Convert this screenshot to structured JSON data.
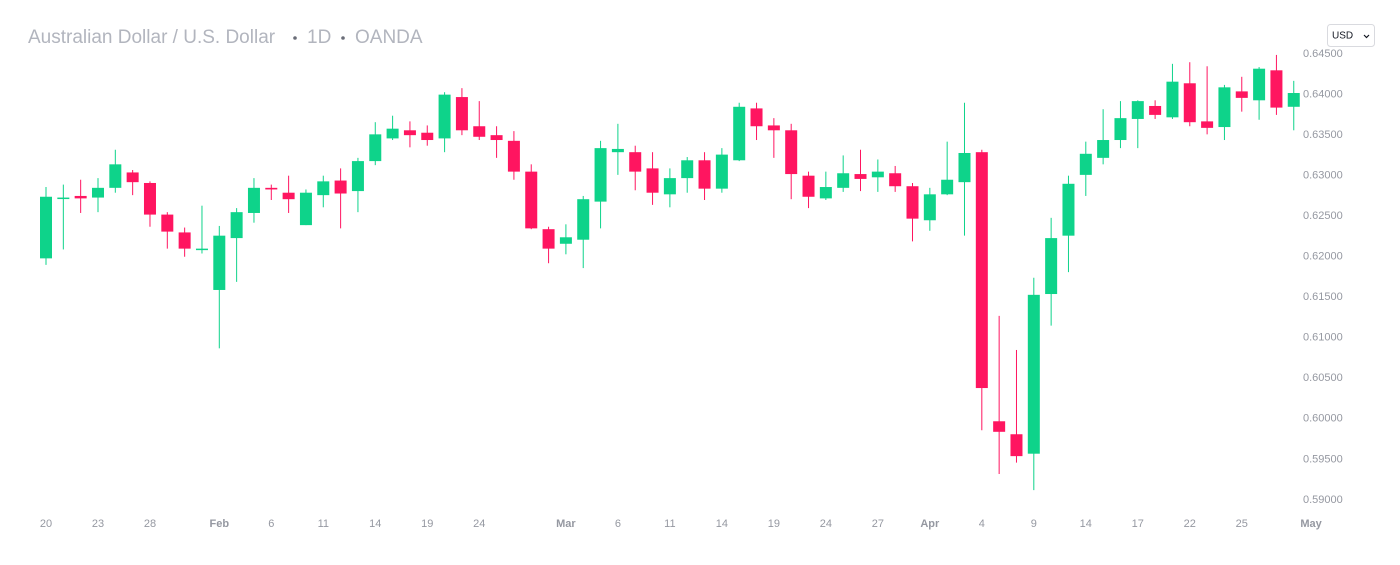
{
  "header": {
    "title": "Australian Dollar / U.S. Dollar",
    "interval": "1D",
    "source": "OANDA",
    "currency": "USD"
  },
  "chart_data": {
    "type": "candlestick",
    "up_color": "#0ed38a",
    "down_color": "#ff1560",
    "ylim": [
      0.589,
      0.646
    ],
    "yticks": [
      {
        "value": 0.59,
        "label": "0.59000"
      },
      {
        "value": 0.595,
        "label": "0.59500"
      },
      {
        "value": 0.6,
        "label": "0.60000"
      },
      {
        "value": 0.605,
        "label": "0.60500"
      },
      {
        "value": 0.61,
        "label": "0.61000"
      },
      {
        "value": 0.615,
        "label": "0.61500"
      },
      {
        "value": 0.62,
        "label": "0.62000"
      },
      {
        "value": 0.625,
        "label": "0.62500"
      },
      {
        "value": 0.63,
        "label": "0.63000"
      },
      {
        "value": 0.635,
        "label": "0.63500"
      },
      {
        "value": 0.64,
        "label": "0.64000"
      },
      {
        "value": 0.645,
        "label": "0.64500"
      }
    ],
    "xticks": [
      {
        "value": 0,
        "label": "20"
      },
      {
        "value": 3,
        "label": "23"
      },
      {
        "value": 6,
        "label": "28"
      },
      {
        "value": 10,
        "label": "Feb"
      },
      {
        "value": 13,
        "label": "6"
      },
      {
        "value": 16,
        "label": "11"
      },
      {
        "value": 19,
        "label": "14"
      },
      {
        "value": 22,
        "label": "19"
      },
      {
        "value": 25,
        "label": "24"
      },
      {
        "value": 30,
        "label": "Mar"
      },
      {
        "value": 33,
        "label": "6"
      },
      {
        "value": 36,
        "label": "11"
      },
      {
        "value": 39,
        "label": "14"
      },
      {
        "value": 42,
        "label": "19"
      },
      {
        "value": 45,
        "label": "24"
      },
      {
        "value": 48,
        "label": "27"
      },
      {
        "value": 51,
        "label": "Apr"
      },
      {
        "value": 54,
        "label": "4"
      },
      {
        "value": 57,
        "label": "9"
      },
      {
        "value": 60,
        "label": "14"
      },
      {
        "value": 63,
        "label": "17"
      },
      {
        "value": 66,
        "label": "22"
      },
      {
        "value": 69,
        "label": "25"
      },
      {
        "value": 73,
        "label": "May"
      }
    ],
    "open": [
      0.6198,
      0.6272,
      0.6275,
      0.6273,
      0.6285,
      0.6304,
      0.6291,
      0.6252,
      0.623,
      0.6209,
      0.6159,
      0.6223,
      0.6254,
      0.6285,
      0.6279,
      0.6239,
      0.6276,
      0.6294,
      0.6281,
      0.6318,
      0.6346,
      0.6356,
      0.6353,
      0.6346,
      0.6397,
      0.6361,
      0.635,
      0.6343,
      0.6305,
      0.6234,
      0.6216,
      0.6221,
      0.6268,
      0.6329,
      0.6329,
      0.6309,
      0.6277,
      0.6297,
      0.6319,
      0.6284,
      0.6319,
      0.6383,
      0.6362,
      0.6356,
      0.63,
      0.6272,
      0.6285,
      0.6302,
      0.6298,
      0.6303,
      0.6287,
      0.6245,
      0.6277,
      0.6292,
      0.6329,
      0.5997,
      0.5981,
      0.5957,
      0.6154,
      0.6226,
      0.6301,
      0.6322,
      0.6344,
      0.637,
      0.6386,
      0.6372,
      0.6414,
      0.6367,
      0.636,
      0.6404,
      0.6393,
      0.643,
      0.6385
    ],
    "high": [
      0.6286,
      0.6289,
      0.6295,
      0.6297,
      0.6332,
      0.6307,
      0.6293,
      0.6255,
      0.6236,
      0.6263,
      0.6238,
      0.626,
      0.6297,
      0.6289,
      0.63,
      0.6283,
      0.63,
      0.6309,
      0.6322,
      0.6366,
      0.6374,
      0.6367,
      0.6362,
      0.6403,
      0.6408,
      0.6392,
      0.6361,
      0.6355,
      0.6314,
      0.6237,
      0.624,
      0.6275,
      0.6343,
      0.6364,
      0.6337,
      0.6329,
      0.6309,
      0.6323,
      0.6329,
      0.6334,
      0.639,
      0.639,
      0.6371,
      0.6364,
      0.6305,
      0.6305,
      0.6325,
      0.6332,
      0.632,
      0.6312,
      0.6291,
      0.6285,
      0.6342,
      0.639,
      0.6332,
      0.6127,
      0.6085,
      0.6174,
      0.6248,
      0.63,
      0.6342,
      0.6382,
      0.6392,
      0.6393,
      0.6393,
      0.6438,
      0.644,
      0.6435,
      0.6412,
      0.6422,
      0.6434,
      0.6449,
      0.6417
    ],
    "low": [
      0.619,
      0.6209,
      0.6254,
      0.6255,
      0.6279,
      0.6276,
      0.6237,
      0.621,
      0.62,
      0.6204,
      0.6087,
      0.6169,
      0.6242,
      0.627,
      0.6254,
      0.6239,
      0.6261,
      0.6235,
      0.6255,
      0.6313,
      0.6344,
      0.6335,
      0.6337,
      0.6329,
      0.635,
      0.6344,
      0.6322,
      0.6295,
      0.6234,
      0.6192,
      0.6203,
      0.6186,
      0.6235,
      0.6301,
      0.6282,
      0.6264,
      0.6261,
      0.6279,
      0.627,
      0.6279,
      0.6318,
      0.6344,
      0.6322,
      0.6271,
      0.626,
      0.627,
      0.628,
      0.6281,
      0.628,
      0.628,
      0.6219,
      0.6232,
      0.6276,
      0.6226,
      0.5986,
      0.5932,
      0.5946,
      0.5912,
      0.6115,
      0.6181,
      0.6275,
      0.6314,
      0.6334,
      0.6334,
      0.637,
      0.637,
      0.6361,
      0.6351,
      0.6344,
      0.6379,
      0.6369,
      0.6375,
      0.6356
    ],
    "close": [
      0.6274,
      0.6273,
      0.6272,
      0.6285,
      0.6314,
      0.6292,
      0.6252,
      0.6231,
      0.621,
      0.621,
      0.6226,
      0.6255,
      0.6285,
      0.6283,
      0.6271,
      0.6279,
      0.6293,
      0.6278,
      0.6318,
      0.6351,
      0.6358,
      0.635,
      0.6344,
      0.64,
      0.6356,
      0.6348,
      0.6344,
      0.6305,
      0.6235,
      0.621,
      0.6224,
      0.6271,
      0.6334,
      0.6333,
      0.6305,
      0.6279,
      0.6297,
      0.6319,
      0.6284,
      0.6326,
      0.6385,
      0.6361,
      0.6356,
      0.6302,
      0.6274,
      0.6286,
      0.6303,
      0.6296,
      0.6305,
      0.6287,
      0.6247,
      0.6277,
      0.6295,
      0.6328,
      0.6038,
      0.5984,
      0.5954,
      0.6153,
      0.6223,
      0.629,
      0.6327,
      0.6344,
      0.6371,
      0.6392,
      0.6375,
      0.6416,
      0.6366,
      0.6359,
      0.6409,
      0.6396,
      0.6432,
      0.6384,
      0.6402
    ]
  }
}
